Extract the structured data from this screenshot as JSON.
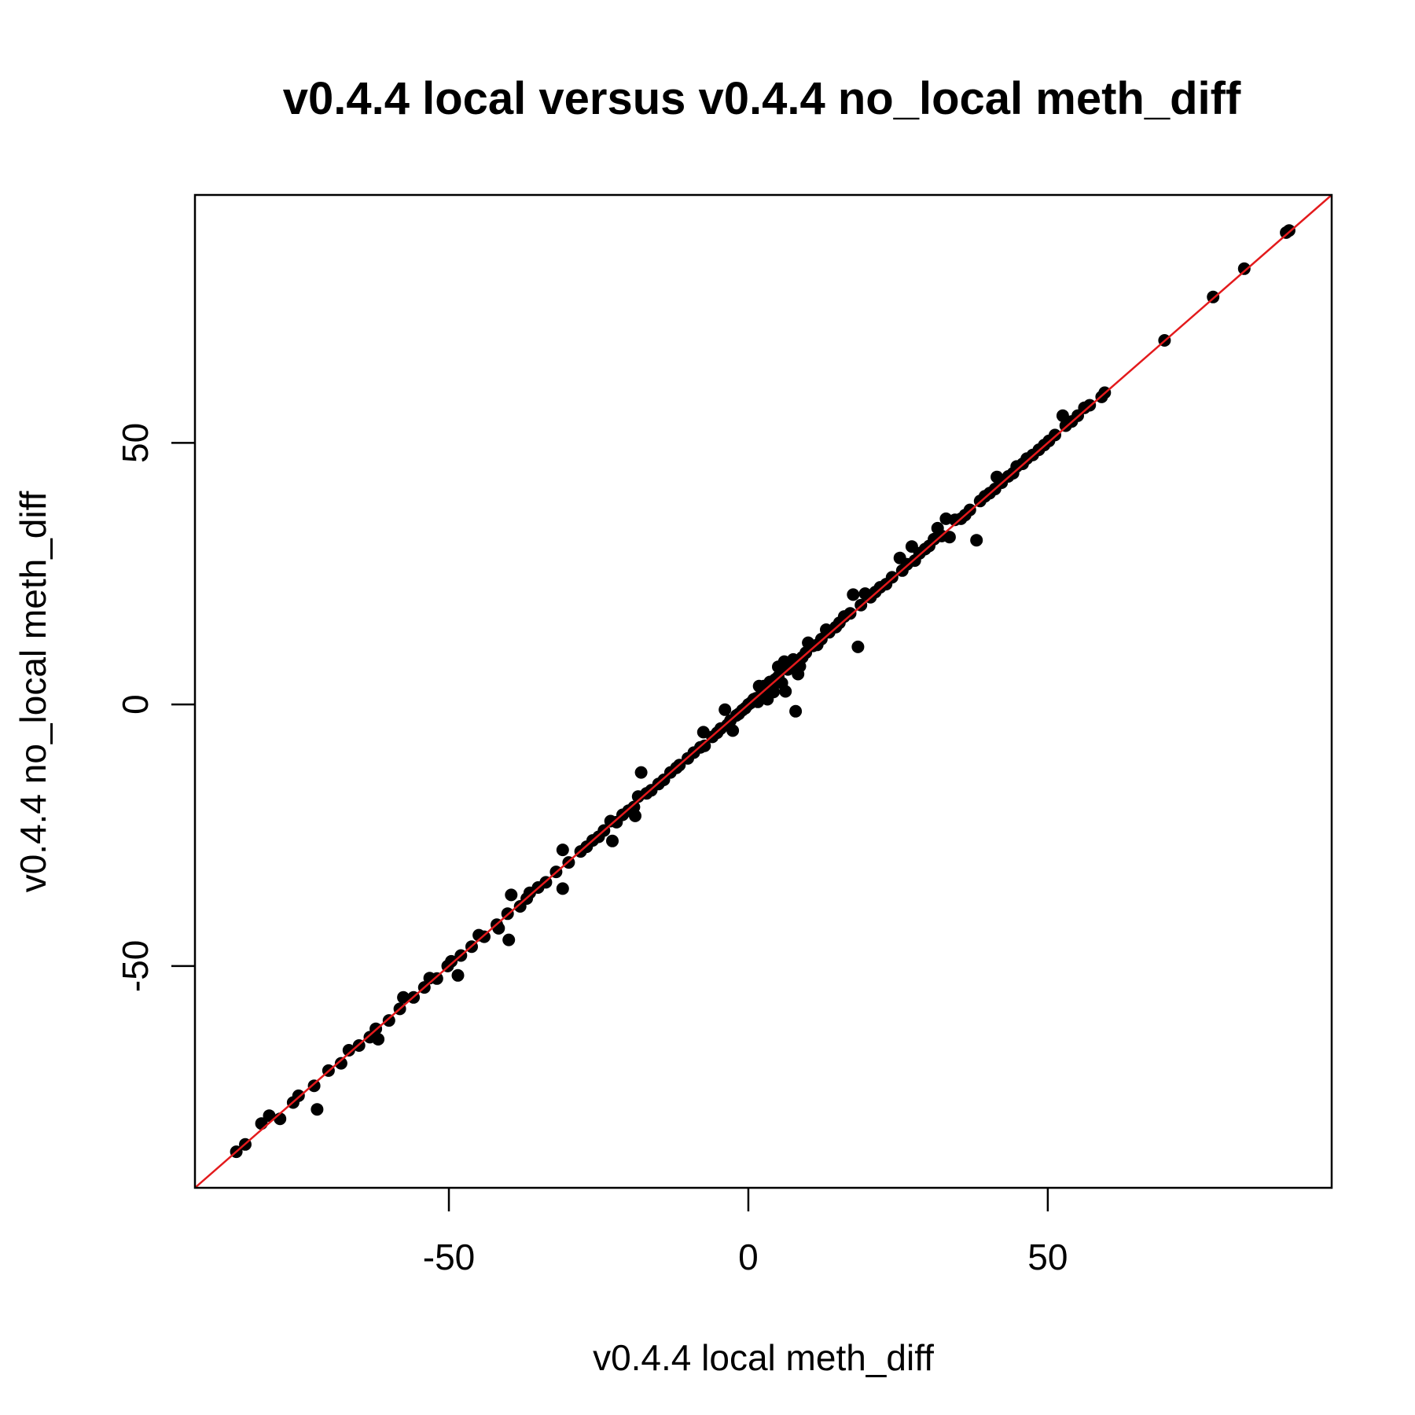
{
  "chart_data": {
    "type": "scatter",
    "title": "v0.4.4 local versus v0.4.4 no_local meth_diff",
    "xlabel": "v0.4.4 local meth_diff",
    "ylabel": "v0.4.4 no_local meth_diff",
    "xlim": [
      -92.4,
      97.4
    ],
    "ylim": [
      -92.4,
      97.4
    ],
    "x_ticks": [
      -50,
      0,
      50
    ],
    "y_ticks": [
      -50,
      0,
      50
    ],
    "x_tick_labels": [
      "-50",
      "0",
      "50"
    ],
    "y_tick_labels": [
      "-50",
      "0",
      "50"
    ],
    "grid": false,
    "legend": "none",
    "point_color": "#000000",
    "reference_line": {
      "type": "identity",
      "color": "#e31a1c"
    },
    "series": [
      {
        "values": [
          [
            -85.5,
            -85.5
          ],
          [
            -84.0,
            -84.1
          ],
          [
            -81.3,
            -80.1
          ],
          [
            -80.0,
            -78.6
          ],
          [
            -78.2,
            -79.2
          ],
          [
            -76.0,
            -76.1
          ],
          [
            -75.1,
            -74.8
          ],
          [
            -72.5,
            -72.9
          ],
          [
            -72.0,
            -77.4
          ],
          [
            -70.1,
            -70.0
          ],
          [
            -68.0,
            -68.6
          ],
          [
            -66.7,
            -66.1
          ],
          [
            -65.0,
            -65.2
          ],
          [
            -63.2,
            -63.6
          ],
          [
            -62.2,
            -62.0
          ],
          [
            -61.8,
            -64.0
          ],
          [
            -60.0,
            -60.4
          ],
          [
            -58.2,
            -58.2
          ],
          [
            -57.6,
            -56.0
          ],
          [
            -55.9,
            -56.0
          ],
          [
            -54.1,
            -54.1
          ],
          [
            -53.2,
            -52.3
          ],
          [
            -52.0,
            -52.4
          ],
          [
            -50.2,
            -50.0
          ],
          [
            -49.6,
            -49.1
          ],
          [
            -48.0,
            -48.0
          ],
          [
            -48.5,
            -51.8
          ],
          [
            -46.2,
            -46.3
          ],
          [
            -45.0,
            -44.1
          ],
          [
            -44.1,
            -44.4
          ],
          [
            -42.0,
            -42.1
          ],
          [
            -41.7,
            -42.8
          ],
          [
            -40.2,
            -40.0
          ],
          [
            -40.0,
            -45.0
          ],
          [
            -39.6,
            -36.4
          ],
          [
            -38.1,
            -38.6
          ],
          [
            -37.0,
            -37.1
          ],
          [
            -36.5,
            -36.0
          ],
          [
            -35.1,
            -35.0
          ],
          [
            -33.8,
            -34.0
          ],
          [
            -32.1,
            -32.0
          ],
          [
            -31.0,
            -27.8
          ],
          [
            -31.0,
            -35.2
          ],
          [
            -30.0,
            -30.2
          ],
          [
            -28.0,
            -28.1
          ],
          [
            -27.0,
            -27.2
          ],
          [
            -26.0,
            -26.0
          ],
          [
            -25.0,
            -25.3
          ],
          [
            -24.1,
            -24.1
          ],
          [
            -23.0,
            -22.3
          ],
          [
            -22.7,
            -26.1
          ],
          [
            -22.0,
            -22.5
          ],
          [
            -21.0,
            -21.1
          ],
          [
            -20.0,
            -20.3
          ],
          [
            -19.1,
            -19.6
          ],
          [
            -18.9,
            -21.3
          ],
          [
            -18.4,
            -17.6
          ],
          [
            -17.9,
            -13.0
          ],
          [
            -17.0,
            -17.0
          ],
          [
            -16.2,
            -16.4
          ],
          [
            -15.0,
            -15.2
          ],
          [
            -14.1,
            -14.4
          ],
          [
            -13.0,
            -13.0
          ],
          [
            -12.0,
            -12.1
          ],
          [
            -11.5,
            -11.6
          ],
          [
            -10.1,
            -10.3
          ],
          [
            -9.1,
            -9.2
          ],
          [
            -8.0,
            -8.2
          ],
          [
            -7.3,
            -7.9
          ],
          [
            -7.5,
            -5.3
          ],
          [
            -6.0,
            -6.2
          ],
          [
            -5.2,
            -5.4
          ],
          [
            -4.6,
            -4.6
          ],
          [
            -3.9,
            -1.0
          ],
          [
            -3.5,
            -3.9
          ],
          [
            -3.0,
            -3.1
          ],
          [
            -2.6,
            -5.0
          ],
          [
            -2.0,
            -2.1
          ],
          [
            -1.6,
            -1.8
          ],
          [
            -1.0,
            -1.1
          ],
          [
            -0.5,
            -0.7
          ],
          [
            0.0,
            0.0
          ],
          [
            0.4,
            0.3
          ],
          [
            0.9,
            1.0
          ],
          [
            1.3,
            1.2
          ],
          [
            1.6,
            0.5
          ],
          [
            1.8,
            3.5
          ],
          [
            2.3,
            2.2
          ],
          [
            2.6,
            3.5
          ],
          [
            2.9,
            2.9
          ],
          [
            3.2,
            1.0
          ],
          [
            3.6,
            4.3
          ],
          [
            3.9,
            3.6
          ],
          [
            4.2,
            2.4
          ],
          [
            4.5,
            4.8
          ],
          [
            5.0,
            5.3
          ],
          [
            5.0,
            7.2
          ],
          [
            5.6,
            4.1
          ],
          [
            6.0,
            8.2
          ],
          [
            6.2,
            2.5
          ],
          [
            6.6,
            6.7
          ],
          [
            7.0,
            7.4
          ],
          [
            7.5,
            8.6
          ],
          [
            7.9,
            -1.3
          ],
          [
            8.3,
            5.8
          ],
          [
            8.6,
            7.3
          ],
          [
            9.0,
            9.0
          ],
          [
            9.6,
            9.9
          ],
          [
            10.0,
            11.8
          ],
          [
            10.8,
            11.2
          ],
          [
            11.5,
            11.4
          ],
          [
            12.2,
            12.5
          ],
          [
            13.0,
            14.3
          ],
          [
            13.5,
            13.8
          ],
          [
            14.6,
            14.8
          ],
          [
            15.2,
            15.6
          ],
          [
            16.0,
            16.8
          ],
          [
            17.0,
            17.4
          ],
          [
            17.5,
            21.0
          ],
          [
            18.3,
            11.0
          ],
          [
            18.8,
            19.0
          ],
          [
            19.5,
            21.2
          ],
          [
            20.4,
            20.5
          ],
          [
            21.2,
            21.5
          ],
          [
            22.0,
            22.4
          ],
          [
            23.0,
            23.0
          ],
          [
            24.0,
            24.3
          ],
          [
            25.3,
            28.0
          ],
          [
            25.7,
            25.6
          ],
          [
            26.5,
            26.8
          ],
          [
            27.3,
            30.2
          ],
          [
            27.8,
            27.5
          ],
          [
            28.6,
            28.9
          ],
          [
            29.5,
            29.7
          ],
          [
            30.2,
            30.3
          ],
          [
            31.0,
            31.6
          ],
          [
            31.6,
            33.7
          ],
          [
            32.3,
            32.2
          ],
          [
            33.0,
            35.5
          ],
          [
            33.6,
            32.0
          ],
          [
            34.5,
            35.3
          ],
          [
            35.5,
            35.5
          ],
          [
            36.2,
            36.2
          ],
          [
            37.0,
            37.2
          ],
          [
            38.1,
            31.4
          ],
          [
            38.7,
            38.9
          ],
          [
            39.5,
            39.8
          ],
          [
            40.3,
            40.4
          ],
          [
            41.2,
            41.2
          ],
          [
            41.5,
            43.5
          ],
          [
            42.3,
            42.4
          ],
          [
            43.4,
            43.6
          ],
          [
            44.2,
            44.2
          ],
          [
            44.8,
            45.5
          ],
          [
            45.8,
            46.0
          ],
          [
            46.5,
            47.0
          ],
          [
            47.5,
            47.7
          ],
          [
            48.5,
            48.7
          ],
          [
            49.4,
            49.6
          ],
          [
            50.2,
            50.4
          ],
          [
            51.2,
            51.5
          ],
          [
            52.5,
            55.2
          ],
          [
            53.0,
            53.3
          ],
          [
            54.0,
            54.1
          ],
          [
            55.0,
            55.2
          ],
          [
            56.1,
            56.7
          ],
          [
            57.0,
            57.2
          ],
          [
            59.0,
            58.8
          ],
          [
            59.5,
            59.6
          ],
          [
            69.5,
            69.6
          ],
          [
            77.6,
            77.9
          ],
          [
            82.8,
            83.3
          ],
          [
            89.8,
            90.2
          ],
          [
            90.3,
            90.6
          ]
        ]
      }
    ]
  }
}
